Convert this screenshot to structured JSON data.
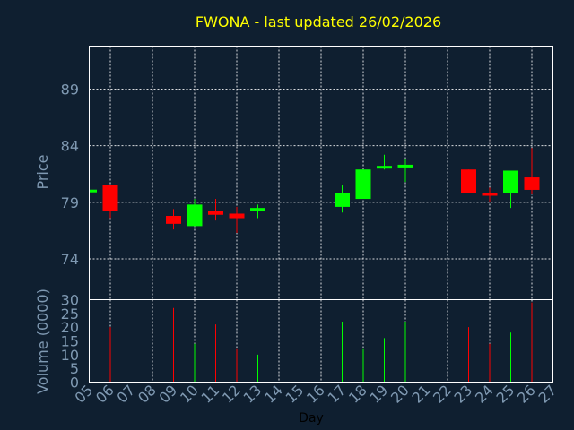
{
  "chart_data": {
    "type": "candlestick",
    "title": "FWONA - last updated 26/02/2026",
    "xlabel": "Day",
    "ylabel_price": "Price",
    "ylabel_volume": "Volume (0000)",
    "price_ticks": [
      74,
      79,
      84,
      89
    ],
    "price_ylim": [
      70.4,
      92.8
    ],
    "volume_ticks": [
      0,
      5,
      10,
      15,
      20,
      25,
      30
    ],
    "volume_ylim": [
      0,
      30
    ],
    "x_ticks": [
      "05",
      "06",
      "07",
      "08",
      "09",
      "10",
      "11",
      "12",
      "13",
      "14",
      "15",
      "16",
      "17",
      "18",
      "19",
      "20",
      "21",
      "22",
      "23",
      "24",
      "25",
      "26",
      "27"
    ],
    "grid": true,
    "colors": {
      "up": "#00ff00",
      "down": "#ff0000",
      "title": "#ffff00",
      "axis": "#7f99b2",
      "background": "#0f1f30",
      "grid": "#ffffff",
      "frame": "#ffffff"
    },
    "candles": [
      {
        "day": "05",
        "open": 80.0,
        "close": 80.0,
        "high": 80.0,
        "low": 80.0,
        "volume": 0
      },
      {
        "day": "06",
        "open": 80.5,
        "close": 78.2,
        "high": 80.5,
        "low": 77.6,
        "volume": 20
      },
      {
        "day": "09",
        "open": 77.8,
        "close": 77.1,
        "high": 78.4,
        "low": 76.6,
        "volume": 27
      },
      {
        "day": "10",
        "open": 76.9,
        "close": 78.8,
        "high": 79.3,
        "low": 76.9,
        "volume": 14
      },
      {
        "day": "11",
        "open": 78.2,
        "close": 77.9,
        "high": 79.3,
        "low": 77.4,
        "volume": 21
      },
      {
        "day": "12",
        "open": 78.0,
        "close": 77.6,
        "high": 78.6,
        "low": 76.3,
        "volume": 12
      },
      {
        "day": "13",
        "open": 78.2,
        "close": 78.5,
        "high": 78.8,
        "low": 77.6,
        "volume": 10
      },
      {
        "day": "17",
        "open": 78.6,
        "close": 79.8,
        "high": 80.5,
        "low": 78.1,
        "volume": 22
      },
      {
        "day": "18",
        "open": 79.3,
        "close": 81.9,
        "high": 81.9,
        "low": 79.3,
        "volume": 12
      },
      {
        "day": "19",
        "open": 82.0,
        "close": 82.1,
        "high": 83.2,
        "low": 81.9,
        "volume": 16
      },
      {
        "day": "20",
        "open": 82.1,
        "close": 82.2,
        "high": 82.8,
        "low": 80.8,
        "volume": 22
      },
      {
        "day": "23",
        "open": 81.9,
        "close": 79.8,
        "high": 81.9,
        "low": 79.8,
        "volume": 20
      },
      {
        "day": "24",
        "open": 79.7,
        "close": 79.6,
        "high": 80.3,
        "low": 79.0,
        "volume": 14
      },
      {
        "day": "25",
        "open": 79.8,
        "close": 81.8,
        "high": 81.8,
        "low": 78.5,
        "volume": 18
      },
      {
        "day": "26",
        "open": 81.2,
        "close": 80.1,
        "high": 83.8,
        "low": 79.7,
        "volume": 29
      }
    ]
  }
}
